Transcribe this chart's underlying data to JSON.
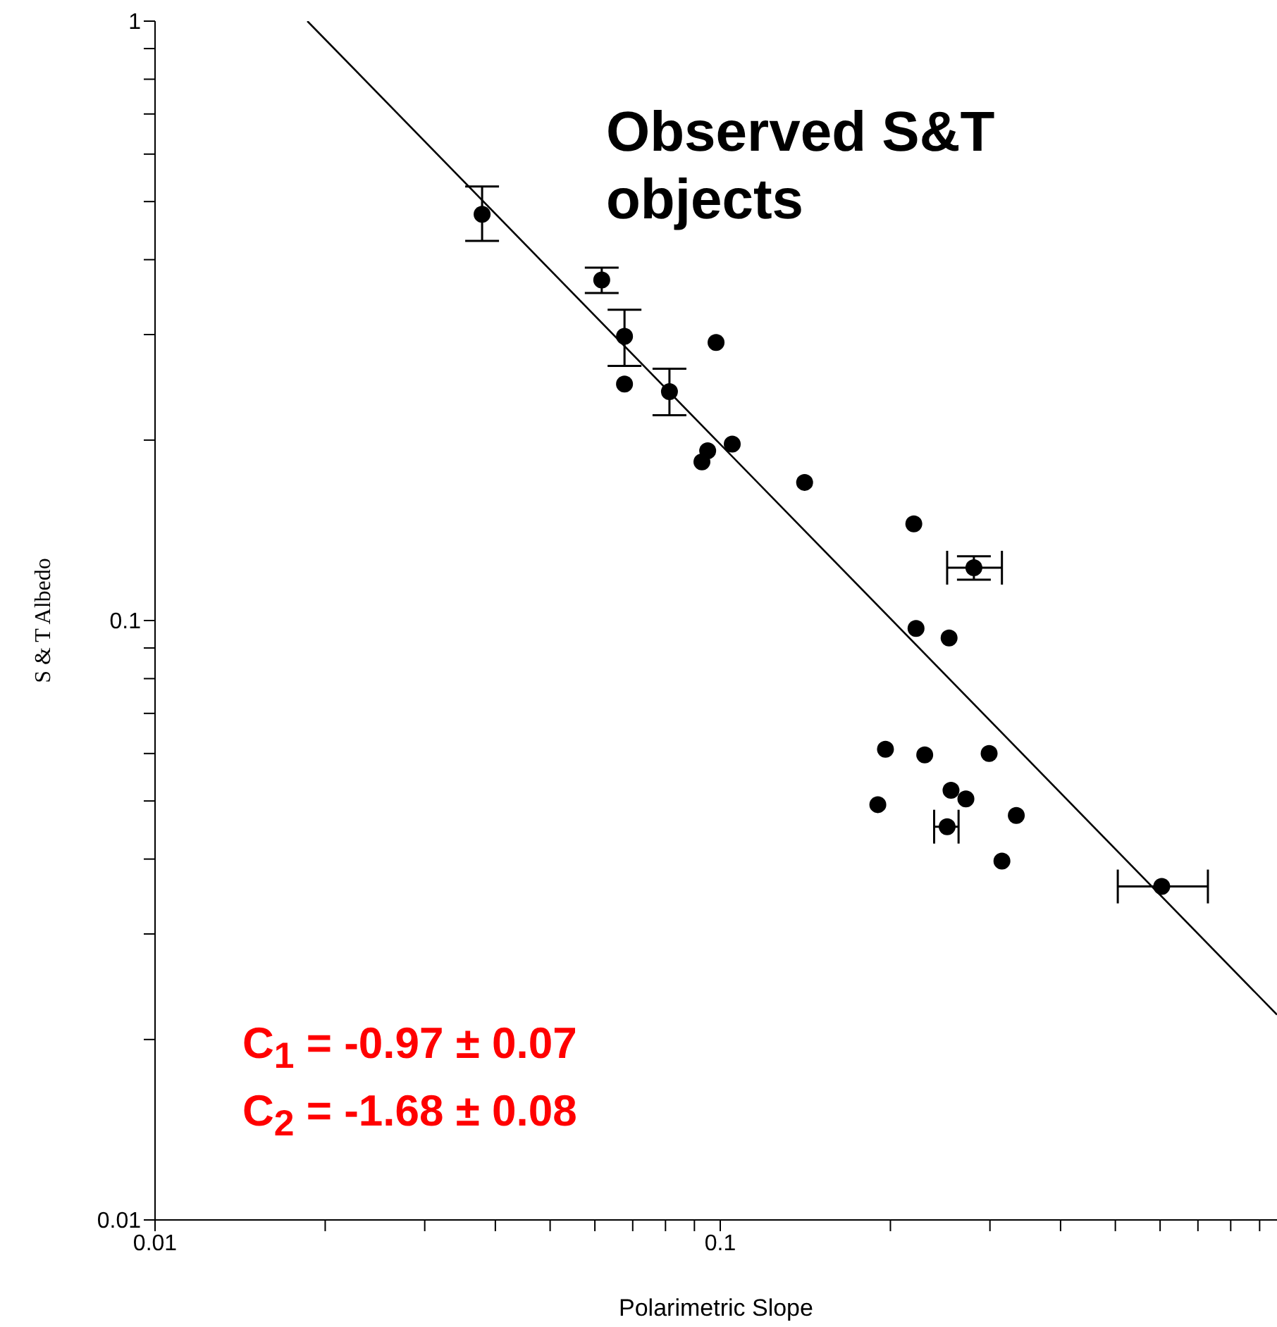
{
  "chart_data": {
    "type": "scatter",
    "title": "Observed S&T objects",
    "xlabel": "Polarimetric Slope",
    "ylabel": "S & T Albedo",
    "annotations": [
      "C$_{1}$ = -0.97 ± 0.07",
      "C$_{2}$ = -1.68 ± 0.08"
    ],
    "log": "xy",
    "marker": "circle",
    "xlim": [
      0.01,
      0.966
    ],
    "ylim": [
      0.01,
      1
    ],
    "xticks": [
      0.01,
      {
        "value": 0.02,
        "label": null
      },
      {
        "value": 0.03,
        "label": null
      },
      {
        "value": 0.04,
        "label": null
      },
      {
        "value": 0.05,
        "label": null
      },
      {
        "value": 0.06,
        "label": null
      },
      {
        "value": 0.07,
        "label": null
      },
      {
        "value": 0.08,
        "label": null
      },
      {
        "value": 0.09,
        "label": null
      },
      0.1,
      {
        "value": 0.2,
        "label": null
      },
      {
        "value": 0.3,
        "label": null
      },
      {
        "value": 0.4,
        "label": null
      },
      {
        "value": 0.5,
        "label": null
      },
      {
        "value": 0.6,
        "label": null
      },
      {
        "value": 0.7,
        "label": null
      },
      {
        "value": 0.8,
        "label": null
      },
      {
        "value": 0.9,
        "label": null
      }
    ],
    "yticks": [
      0.01,
      {
        "value": 0.02,
        "label": null
      },
      {
        "value": 0.03,
        "label": null
      },
      {
        "value": 0.04,
        "label": null
      },
      {
        "value": 0.05,
        "label": null
      },
      {
        "value": 0.06,
        "label": null
      },
      {
        "value": 0.07,
        "label": null
      },
      {
        "value": 0.08,
        "label": null
      },
      {
        "value": 0.09,
        "label": null
      },
      0.1,
      {
        "value": 0.2,
        "label": null
      },
      {
        "value": 0.3,
        "label": null
      },
      {
        "value": 0.4,
        "label": null
      },
      {
        "value": 0.5,
        "label": null
      },
      {
        "value": 0.6,
        "label": null
      },
      {
        "value": 0.7,
        "label": null
      },
      {
        "value": 0.8,
        "label": null
      },
      {
        "value": 0.9,
        "label": null
      },
      1
    ],
    "series": [
      {
        "color": "#000000",
        "x": [
          0.0379,
          0.0617,
          0.0677,
          0.0677,
          0.0813,
          0.0983,
          0.0928,
          0.095,
          0.105,
          0.141,
          0.22,
          0.281,
          0.222,
          0.254,
          0.196,
          0.23,
          0.299,
          0.19,
          0.256,
          0.272,
          0.334,
          0.252,
          0.315,
          0.604
        ],
        "values": [
          0.476,
          0.37,
          0.298,
          0.248,
          0.241,
          0.291,
          0.184,
          0.192,
          0.197,
          0.17,
          0.145,
          0.1225,
          0.097,
          0.0935,
          0.061,
          0.0597,
          0.06,
          0.0493,
          0.0521,
          0.0504,
          0.0473,
          0.0453,
          0.0397,
          0.036
        ],
        "errors": [
          [
            0.43,
            0.53
          ],
          [
            0.352,
            0.388
          ],
          [
            0.266,
            0.33
          ],
          null,
          [
            0.22,
            0.263
          ],
          null,
          null,
          null,
          null,
          null,
          null,
          [
            0.117,
            0.128
          ],
          null,
          null,
          null,
          null,
          null,
          null,
          null,
          null,
          null,
          null,
          null,
          null
        ],
        "xerrors": [
          null,
          null,
          null,
          null,
          null,
          null,
          null,
          null,
          null,
          null,
          null,
          [
            0.252,
            0.315
          ],
          null,
          null,
          null,
          null,
          null,
          null,
          null,
          null,
          null,
          [
            0.239,
            0.264
          ],
          null,
          [
            0.505,
            0.729
          ]
        ]
      },
      {
        "type": "line",
        "color": "#000000",
        "marker": "none",
        "x": [
          0.0186,
          0.966
        ],
        "values": [
          1,
          0.022
        ]
      }
    ]
  }
}
